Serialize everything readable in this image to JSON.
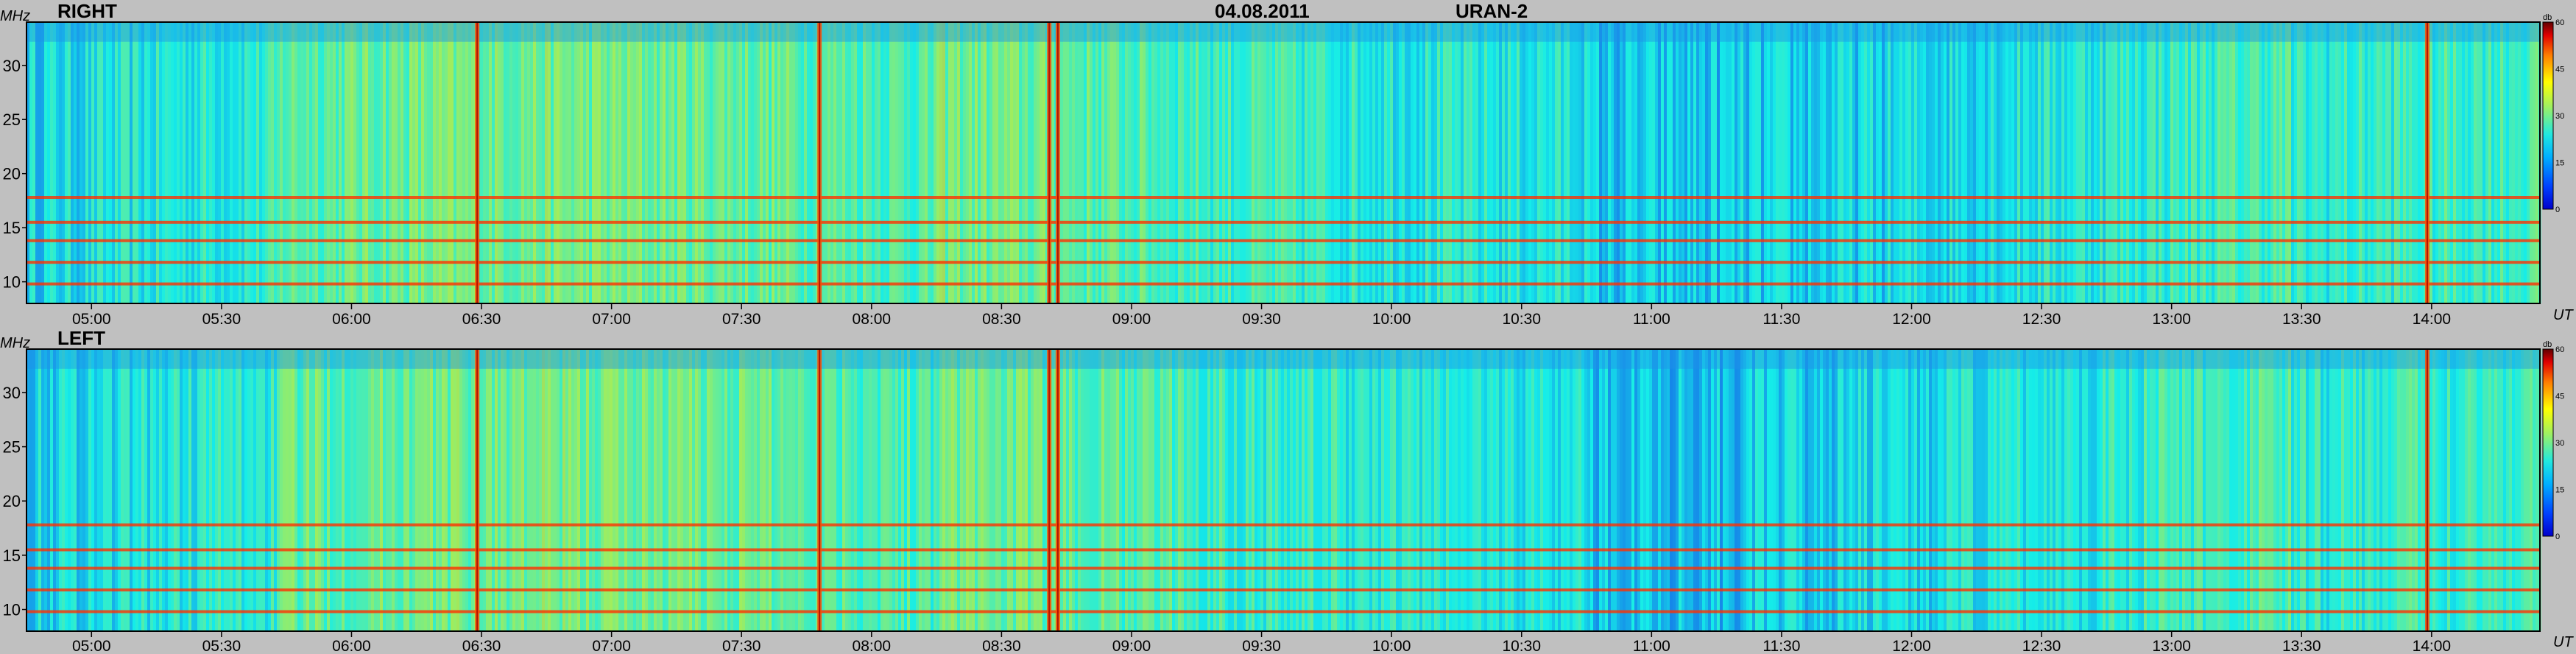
{
  "header": {
    "date": "04.08.2011",
    "instrument": "URAN-2"
  },
  "colors": {
    "background": "#c0c0c0",
    "axis": "#000000"
  },
  "colormap": "jet",
  "chart_data": [
    {
      "type": "heatmap",
      "panel_label": "RIGHT",
      "y_unit": "MHz",
      "x_unit": "UT",
      "colorbar_unit": "db",
      "x_range": [
        "04:45",
        "14:25"
      ],
      "ylim": [
        8,
        34
      ],
      "y_ticks": [
        10,
        15,
        20,
        25,
        30
      ],
      "x_ticks": [
        "05:00",
        "05:30",
        "06:00",
        "06:30",
        "07:00",
        "07:30",
        "08:00",
        "08:30",
        "09:00",
        "09:30",
        "10:00",
        "10:30",
        "11:00",
        "11:30",
        "12:00",
        "12:30",
        "13:00",
        "13:30",
        "14:00"
      ],
      "colorbar_range": [
        0,
        60
      ],
      "colorbar_ticks": [
        0,
        15,
        30,
        45,
        60
      ],
      "horizontal_bands_mhz": [
        9.8,
        11.8,
        13.8,
        15.5,
        17.8
      ],
      "vertical_bursts_ut": [
        "06:29",
        "07:48",
        "08:41",
        "08:43",
        "13:59"
      ]
    },
    {
      "type": "heatmap",
      "panel_label": "LEFT",
      "y_unit": "MHz",
      "x_unit": "UT",
      "colorbar_unit": "db",
      "x_range": [
        "04:45",
        "14:25"
      ],
      "ylim": [
        8,
        34
      ],
      "y_ticks": [
        10,
        15,
        20,
        25,
        30
      ],
      "x_ticks": [
        "05:00",
        "05:30",
        "06:00",
        "06:30",
        "07:00",
        "07:30",
        "08:00",
        "08:30",
        "09:00",
        "09:30",
        "10:00",
        "10:30",
        "11:00",
        "11:30",
        "12:00",
        "12:30",
        "13:00",
        "13:30",
        "14:00"
      ],
      "colorbar_range": [
        0,
        60
      ],
      "colorbar_ticks": [
        0,
        15,
        30,
        45,
        60
      ],
      "horizontal_bands_mhz": [
        9.8,
        11.8,
        13.8,
        15.5,
        17.8
      ],
      "vertical_bursts_ut": [
        "06:29",
        "07:48",
        "08:41",
        "08:43",
        "13:59"
      ]
    }
  ]
}
